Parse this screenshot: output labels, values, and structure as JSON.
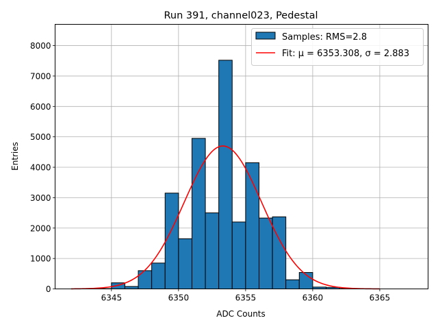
{
  "chart_data": {
    "type": "bar",
    "title": "Run 391, channel023, Pedestal",
    "xlabel": "ADC Counts",
    "ylabel": "Entries",
    "xlim": [
      6340.8,
      6368.6
    ],
    "ylim": [
      0,
      8700
    ],
    "xticks": [
      6345,
      6350,
      6355,
      6360,
      6365
    ],
    "yticks": [
      0,
      1000,
      2000,
      3000,
      4000,
      5000,
      6000,
      7000,
      8000
    ],
    "grid": true,
    "legend_position": "top-right",
    "bin_width": 1,
    "bin_starts": [
      6344,
      6345,
      6346,
      6347,
      6348,
      6349,
      6350,
      6351,
      6352,
      6353,
      6354,
      6355,
      6356,
      6357,
      6358,
      6359,
      6360,
      6361,
      6362
    ],
    "values": [
      10,
      200,
      80,
      600,
      850,
      3150,
      1650,
      4950,
      2500,
      7520,
      2200,
      4150,
      2330,
      2370,
      300,
      540,
      60,
      50,
      10
    ],
    "series": [
      {
        "name": "Samples: RMS=2.8",
        "kind": "histogram",
        "color": "#1f77b4",
        "edgecolor": "#000000"
      },
      {
        "name": "Fit: μ = 6353.308, σ = 2.883",
        "kind": "line",
        "color": "#ff0000",
        "fit": {
          "mu": 6353.308,
          "sigma": 2.883,
          "amplitude": 4700,
          "x_range": [
            6342,
            6365
          ]
        }
      }
    ]
  }
}
